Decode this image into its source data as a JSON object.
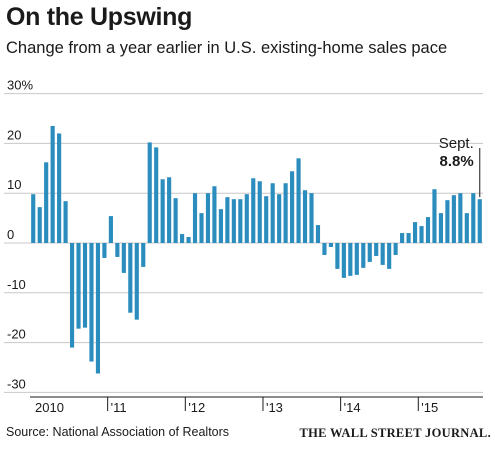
{
  "chart_data": {
    "type": "bar",
    "title": "On the Upswing",
    "subtitle": "Change from a year earlier in U.S. existing-home sales pace",
    "source": "Source: National Association of Realtors",
    "credit": "THE WALL STREET JOURNAL.",
    "ylim": [
      -32,
      30
    ],
    "yticks": [
      {
        "value": 30,
        "label": "30%"
      },
      {
        "value": 20,
        "label": "20"
      },
      {
        "value": 10,
        "label": "10"
      },
      {
        "value": 0,
        "label": "0"
      },
      {
        "value": -10,
        "label": "-10"
      },
      {
        "value": -20,
        "label": "-20"
      },
      {
        "value": -30,
        "label": "-30"
      }
    ],
    "grid": true,
    "xtick_labels": [
      "2010",
      "'11",
      "'12",
      "'13",
      "'14",
      "'15"
    ],
    "year_start_index": [
      0,
      12,
      24,
      36,
      48,
      60
    ],
    "bar_color": "#2b8cbe",
    "values": [
      9.8,
      7.2,
      16.2,
      23.5,
      22.0,
      8.4,
      -21.0,
      -17.2,
      -17.0,
      -23.8,
      -26.2,
      -3.0,
      5.4,
      -2.8,
      -6.0,
      -14.0,
      -15.4,
      -4.8,
      20.2,
      19.2,
      12.8,
      13.2,
      9.0,
      1.8,
      1.2,
      10.0,
      6.0,
      10.0,
      11.4,
      6.8,
      9.2,
      8.8,
      8.8,
      9.8,
      13.0,
      12.4,
      9.4,
      12.0,
      9.8,
      12.0,
      14.4,
      17.0,
      10.6,
      10.0,
      3.6,
      -2.4,
      -0.8,
      -5.2,
      -7.0,
      -6.6,
      -6.4,
      -5.0,
      -3.8,
      -2.6,
      -4.4,
      -5.2,
      -2.4,
      2.0,
      2.0,
      4.2,
      3.4,
      5.2,
      10.8,
      6.0,
      8.6,
      9.6,
      10.0,
      6.0,
      10.0,
      8.8
    ],
    "annotation": {
      "label": "Sept.",
      "value_label": "8.8%"
    }
  }
}
